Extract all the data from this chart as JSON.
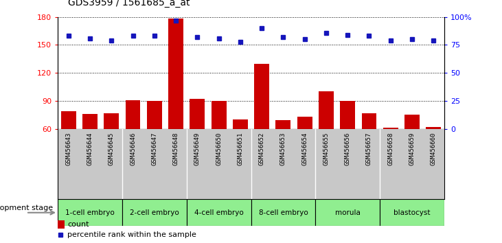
{
  "title": "GDS3959 / 1561685_a_at",
  "samples": [
    "GSM456643",
    "GSM456644",
    "GSM456645",
    "GSM456646",
    "GSM456647",
    "GSM456648",
    "GSM456649",
    "GSM456650",
    "GSM456651",
    "GSM456652",
    "GSM456653",
    "GSM456654",
    "GSM456655",
    "GSM456656",
    "GSM456657",
    "GSM456658",
    "GSM456659",
    "GSM456660"
  ],
  "counts": [
    79,
    76,
    77,
    91,
    90,
    178,
    92,
    90,
    70,
    130,
    69,
    73,
    100,
    90,
    77,
    61,
    75,
    62
  ],
  "percentiles": [
    83,
    81,
    79,
    83,
    83,
    97,
    82,
    81,
    78,
    90,
    82,
    80,
    86,
    84,
    83,
    79,
    80,
    79
  ],
  "stage_labels": [
    "1-cell embryo",
    "2-cell embryo",
    "4-cell embryo",
    "8-cell embryo",
    "morula",
    "blastocyst"
  ],
  "stage_boundaries": [
    0,
    3,
    6,
    9,
    12,
    15,
    18
  ],
  "ylim_left": [
    60,
    180
  ],
  "ylim_right": [
    0,
    100
  ],
  "yticks_left": [
    60,
    90,
    120,
    150,
    180
  ],
  "yticks_right": [
    0,
    25,
    50,
    75,
    100
  ],
  "bar_color": "#CC0000",
  "dot_color": "#1515BB",
  "plot_bg": "#ffffff",
  "xticklabel_bg": "#C8C8C8",
  "stage_color": "#90EE90",
  "grid_color": "#000000",
  "stage_dividers_between": [
    2.5,
    5.5,
    8.5,
    11.5,
    14.5
  ]
}
